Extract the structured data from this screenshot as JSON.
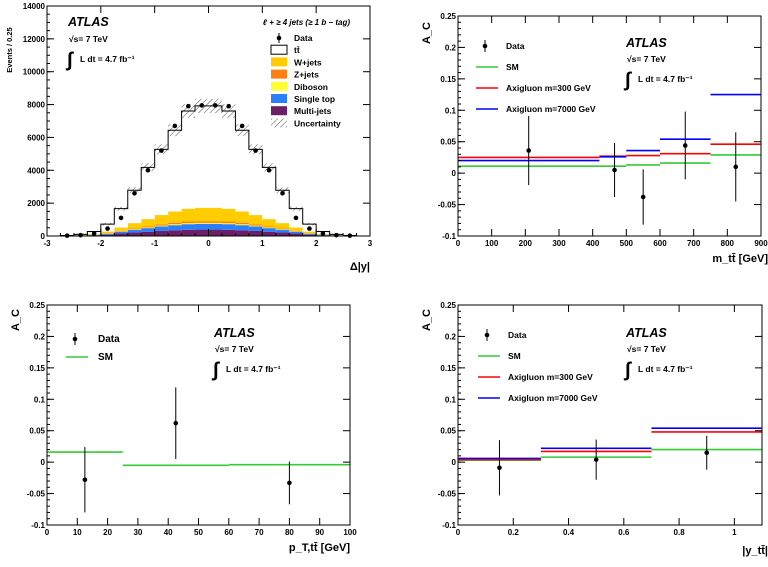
{
  "chart_data": [
    {
      "type": "histogram",
      "title": "",
      "ylabel": "Events / 0.25",
      "xlabel": "Δ|y|",
      "xlim": [
        -3,
        3
      ],
      "ylim": [
        0,
        14000
      ],
      "xticks": [
        "-3",
        "-2",
        "-1",
        "0",
        "1",
        "2",
        "3"
      ],
      "yticks": [
        "0",
        "2000",
        "4000",
        "6000",
        "8000",
        "10000",
        "12000",
        "14000"
      ],
      "atlas_label": "ATLAS",
      "energy_label": "√s= 7 TeV",
      "lumi_label": "L dt = 4.7 fb⁻¹",
      "channel_label": "ℓ + ≥ 4 jets (≥ 1 b − tag)",
      "legend_position": "top-right",
      "legend": [
        "Data",
        "tt̄",
        "W+jets",
        "Z+jets",
        "Diboson",
        "Single top",
        "Multi-jets",
        "Uncertainty"
      ],
      "colors": {
        "ttbar": "#ffffff",
        "wjets": "#ffcc00",
        "zjets": "#ff7f0e",
        "diboson": "#ffff33",
        "singletop": "#2a7fff",
        "multijets": "#6b1f66"
      },
      "bin_edges": [
        -2.75,
        -2.5,
        -2.25,
        -2.0,
        -1.75,
        -1.5,
        -1.25,
        -1.0,
        -0.75,
        -0.5,
        -0.25,
        0.0,
        0.25,
        0.5,
        0.75,
        1.0,
        1.25,
        1.5,
        1.75,
        2.0,
        2.25,
        2.5,
        2.75
      ],
      "data_x": [
        -2.625,
        -2.375,
        -2.125,
        -1.875,
        -1.625,
        -1.375,
        -1.125,
        -0.875,
        -0.625,
        -0.375,
        -0.125,
        0.125,
        0.375,
        0.625,
        0.875,
        1.125,
        1.375,
        1.625,
        1.875,
        2.125,
        2.375,
        2.625
      ],
      "data_y": [
        20,
        50,
        150,
        450,
        1100,
        2600,
        4000,
        5200,
        6700,
        7900,
        7950,
        7950,
        7900,
        6700,
        5200,
        4000,
        2600,
        1100,
        450,
        150,
        50,
        20
      ],
      "stack": [
        {
          "name": "Multi-jets",
          "values": [
            10,
            20,
            40,
            80,
            150,
            210,
            260,
            310,
            350,
            380,
            390,
            390,
            380,
            350,
            310,
            260,
            210,
            150,
            80,
            40,
            20,
            10
          ]
        },
        {
          "name": "Single top",
          "values": [
            5,
            15,
            30,
            60,
            110,
            170,
            220,
            270,
            310,
            340,
            350,
            350,
            340,
            310,
            270,
            220,
            170,
            110,
            60,
            30,
            15,
            5
          ]
        },
        {
          "name": "Diboson",
          "values": [
            2,
            3,
            5,
            10,
            20,
            30,
            40,
            50,
            55,
            60,
            60,
            60,
            60,
            55,
            50,
            40,
            30,
            20,
            10,
            5,
            3,
            2
          ]
        },
        {
          "name": "Z+jets",
          "values": [
            2,
            5,
            10,
            20,
            35,
            55,
            70,
            85,
            95,
            100,
            100,
            100,
            100,
            95,
            85,
            70,
            55,
            35,
            20,
            10,
            5,
            2
          ]
        },
        {
          "name": "W+jets",
          "values": [
            5,
            15,
            40,
            100,
            200,
            320,
            440,
            560,
            680,
            780,
            820,
            820,
            780,
            680,
            560,
            440,
            320,
            200,
            100,
            40,
            15,
            5
          ]
        },
        {
          "name": "tt̄",
          "values": [
            10,
            40,
            150,
            450,
            1150,
            2000,
            3150,
            4000,
            4950,
            5950,
            6200,
            6200,
            5950,
            4950,
            4000,
            3150,
            2000,
            1150,
            450,
            150,
            40,
            10
          ]
        }
      ]
    },
    {
      "type": "step",
      "title": "",
      "ylabel": "A_C",
      "xlabel": "m_tt̄ [GeV]",
      "xlim": [
        0,
        900
      ],
      "ylim": [
        -0.1,
        0.25
      ],
      "xticks": [
        "0",
        "100",
        "200",
        "300",
        "400",
        "500",
        "600",
        "700",
        "800",
        "900"
      ],
      "yticks": [
        "-0.1",
        "-0.05",
        "0",
        "0.05",
        "0.1",
        "0.15",
        "0.2",
        "0.25"
      ],
      "atlas_label": "ATLAS",
      "energy_label": "√s= 7 TeV",
      "lumi_label": "L dt = 4.7 fb⁻¹",
      "legend_position": "top-left",
      "legend": [
        "Data",
        "SM",
        "Axigluon m=300 GeV",
        "Axigluon m=7000 GeV"
      ],
      "colors": {
        "data": "#000000",
        "sm": "#33cc33",
        "axi300": "#ff0000",
        "axi7000": "#0000ff"
      },
      "data_points": [
        {
          "x": 210,
          "y": 0.036,
          "err": 0.055
        },
        {
          "x": 465,
          "y": 0.005,
          "err": 0.043
        },
        {
          "x": 550,
          "y": -0.038,
          "err": 0.044
        },
        {
          "x": 675,
          "y": 0.044,
          "err": 0.054
        },
        {
          "x": 825,
          "y": 0.01,
          "err": 0.055
        }
      ],
      "series": [
        {
          "name": "SM",
          "bins": [
            [
              0,
              420,
              0.011
            ],
            [
              420,
              500,
              0.011
            ],
            [
              500,
              600,
              0.013
            ],
            [
              600,
              750,
              0.016
            ],
            [
              750,
              900,
              0.029
            ]
          ]
        },
        {
          "name": "Axigluon m=300 GeV",
          "bins": [
            [
              0,
              420,
              0.025
            ],
            [
              420,
              500,
              0.027
            ],
            [
              500,
              600,
              0.028
            ],
            [
              600,
              750,
              0.031
            ],
            [
              750,
              900,
              0.046
            ]
          ]
        },
        {
          "name": "Axigluon m=7000 GeV",
          "bins": [
            [
              0,
              420,
              0.02
            ],
            [
              420,
              500,
              0.026
            ],
            [
              500,
              600,
              0.036
            ],
            [
              600,
              750,
              0.054
            ],
            [
              750,
              900,
              0.125
            ]
          ]
        }
      ]
    },
    {
      "type": "step",
      "title": "",
      "ylabel": "A_C",
      "xlabel": "p_T,tt̄ [GeV]",
      "xlim": [
        0,
        100
      ],
      "ylim": [
        -0.1,
        0.25
      ],
      "xticks": [
        "0",
        "10",
        "20",
        "30",
        "40",
        "50",
        "60",
        "70",
        "80",
        "90",
        "100"
      ],
      "yticks": [
        "-0.1",
        "-0.05",
        "0",
        "0.05",
        "0.1",
        "0.15",
        "0.2",
        "0.25"
      ],
      "atlas_label": "ATLAS",
      "energy_label": "√s= 7 TeV",
      "lumi_label": "L dt = 4.7 fb⁻¹",
      "legend_position": "top-left",
      "legend": [
        "Data",
        "SM"
      ],
      "colors": {
        "data": "#000000",
        "sm": "#33cc33"
      },
      "data_points": [
        {
          "x": 12.5,
          "y": -0.028,
          "err": 0.052
        },
        {
          "x": 42.5,
          "y": 0.062,
          "err": 0.057
        },
        {
          "x": 80,
          "y": -0.033,
          "err": 0.034
        }
      ],
      "series": [
        {
          "name": "SM",
          "bins": [
            [
              0,
              25,
              0.016
            ],
            [
              25,
              60,
              -0.005
            ],
            [
              60,
              100,
              -0.004
            ]
          ]
        }
      ]
    },
    {
      "type": "step",
      "title": "",
      "ylabel": "A_C",
      "xlabel": "|y_tt̄|",
      "xlim": [
        0,
        1.1
      ],
      "ylim": [
        -0.1,
        0.25
      ],
      "xticks": [
        "0",
        "0.2",
        "0.4",
        "0.6",
        "0.8",
        "1"
      ],
      "yticks": [
        "-0.1",
        "-0.05",
        "0",
        "0.05",
        "0.1",
        "0.15",
        "0.2",
        "0.25"
      ],
      "atlas_label": "ATLAS",
      "energy_label": "√s= 7 TeV",
      "lumi_label": "L dt = 4.7 fb⁻¹",
      "legend_position": "top-left",
      "legend": [
        "Data",
        "SM",
        "Axigluon m=300 GeV",
        "Axigluon m=7000 GeV"
      ],
      "colors": {
        "data": "#000000",
        "sm": "#33cc33",
        "axi300": "#ff0000",
        "axi7000": "#0000ff"
      },
      "data_points": [
        {
          "x": 0.15,
          "y": -0.009,
          "err": 0.044
        },
        {
          "x": 0.5,
          "y": 0.004,
          "err": 0.032
        },
        {
          "x": 0.9,
          "y": 0.015,
          "err": 0.027
        }
      ],
      "series": [
        {
          "name": "SM",
          "bins": [
            [
              0,
              0.3,
              0.003
            ],
            [
              0.3,
              0.7,
              0.008
            ],
            [
              0.7,
              1.1,
              0.02
            ]
          ]
        },
        {
          "name": "Axigluon m=300 GeV",
          "bins": [
            [
              0,
              0.3,
              0.004
            ],
            [
              0.3,
              0.7,
              0.017
            ],
            [
              0.7,
              1.1,
              0.048
            ]
          ]
        },
        {
          "name": "Axigluon m=7000 GeV",
          "bins": [
            [
              0,
              0.3,
              0.006
            ],
            [
              0.3,
              0.7,
              0.022
            ],
            [
              0.7,
              1.1,
              0.054
            ]
          ]
        }
      ]
    }
  ]
}
